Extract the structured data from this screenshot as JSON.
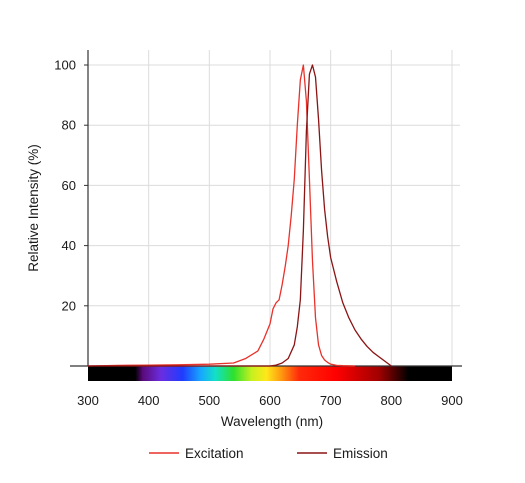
{
  "chart_data": {
    "type": "line",
    "title": "",
    "xlabel": "Wavelength (nm)",
    "ylabel": "Relative Intensity (%)",
    "xlim": [
      300,
      900
    ],
    "ylim": [
      0,
      100
    ],
    "xticks": [
      300,
      400,
      500,
      600,
      700,
      800,
      900
    ],
    "yticks": [
      20,
      40,
      60,
      80,
      100
    ],
    "grid": true,
    "legend_position": "bottom",
    "spectrum_bar": true,
    "series": [
      {
        "name": "Excitation",
        "color": "#e8322b",
        "x": [
          300,
          350,
          400,
          450,
          500,
          540,
          560,
          580,
          590,
          600,
          605,
          610,
          615,
          620,
          625,
          630,
          635,
          640,
          645,
          650,
          655,
          660,
          665,
          670,
          675,
          680,
          685,
          690,
          695,
          700,
          710,
          720,
          740
        ],
        "y": [
          0,
          0.2,
          0.3,
          0.4,
          0.6,
          1,
          2.5,
          5,
          9,
          14,
          19,
          21,
          22,
          27,
          33,
          40,
          50,
          62,
          80,
          95,
          100,
          88,
          62,
          35,
          16,
          7,
          3.5,
          2,
          1.2,
          0.6,
          0.2,
          0.1,
          0
        ]
      },
      {
        "name": "Emission",
        "color": "#8b1414",
        "x": [
          300,
          500,
          600,
          610,
          620,
          630,
          640,
          645,
          650,
          655,
          660,
          665,
          670,
          675,
          680,
          685,
          690,
          695,
          700,
          710,
          720,
          730,
          740,
          750,
          760,
          770,
          780,
          790,
          800
        ],
        "y": [
          0,
          0,
          0,
          0.3,
          1,
          2.5,
          7,
          13,
          22,
          45,
          78,
          97,
          100,
          96,
          82,
          65,
          52,
          43,
          36,
          28,
          21,
          16,
          12,
          9,
          6.5,
          4.5,
          3,
          1.5,
          0
        ]
      }
    ]
  }
}
